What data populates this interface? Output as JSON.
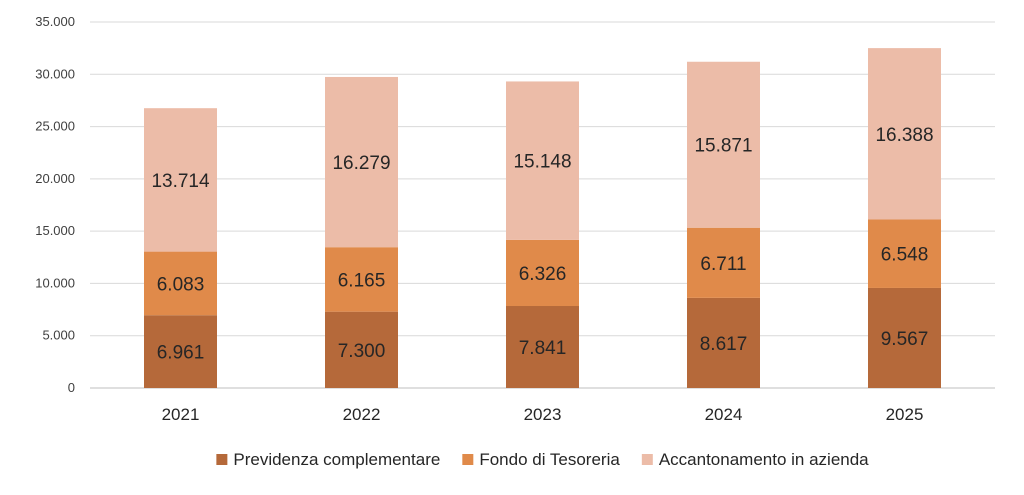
{
  "chart_data": {
    "type": "bar",
    "stacked": true,
    "categories": [
      "2021",
      "2022",
      "2023",
      "2024",
      "2025"
    ],
    "series": [
      {
        "name": "Previdenza complementare",
        "color": "#b5693a",
        "values": [
          6961,
          7300,
          7841,
          8617,
          9567
        ],
        "labels": [
          "6.961",
          "7.300",
          "7.841",
          "8.617",
          "9.567"
        ]
      },
      {
        "name": "Fondo di Tesoreria",
        "color": "#e08a4a",
        "values": [
          6083,
          6165,
          6326,
          6711,
          6548
        ],
        "labels": [
          "6.083",
          "6.165",
          "6.326",
          "6.711",
          "6.548"
        ]
      },
      {
        "name": "Accantonamento in azienda",
        "color": "#ecbca8",
        "values": [
          13714,
          16279,
          15148,
          15871,
          16388
        ],
        "labels": [
          "13.714",
          "16.279",
          "15.148",
          "15.871",
          "16.388"
        ]
      }
    ],
    "ylim": [
      0,
      35000
    ],
    "yticks": [
      0,
      5000,
      10000,
      15000,
      20000,
      25000,
      30000,
      35000
    ],
    "ytick_labels": [
      "0",
      "5.000",
      "10.000",
      "15.000",
      "20.000",
      "25.000",
      "30.000",
      "35.000"
    ],
    "grid": true,
    "legend_position": "bottom",
    "title": "",
    "xlabel": "",
    "ylabel": ""
  }
}
